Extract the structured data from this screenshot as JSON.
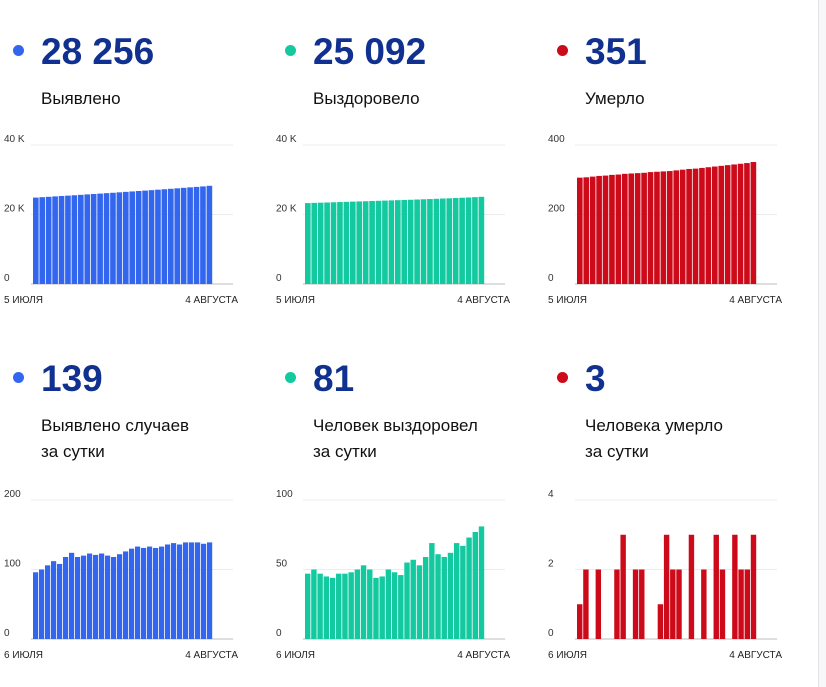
{
  "colors": {
    "blue": "#3366ee",
    "teal": "#12c9a0",
    "red": "#cc0a1a",
    "title": "#10318f"
  },
  "cards": [
    {
      "value": "28 256",
      "label1": "Выявлено",
      "label2": "",
      "chart_data": {
        "type": "bar",
        "color": "#3366ee",
        "y_ticks": [
          "0",
          "20 K",
          "40 K"
        ],
        "ylim": [
          0,
          40000
        ],
        "x_labels": [
          "5 ИЮЛЯ",
          "4 АВГУСТА"
        ],
        "values": [
          24860,
          24980,
          25090,
          25210,
          25320,
          25430,
          25540,
          25660,
          25780,
          25900,
          26020,
          26140,
          26250,
          26380,
          26510,
          26640,
          26760,
          26880,
          27010,
          27140,
          27270,
          27400,
          27530,
          27670,
          27810,
          27940,
          28080,
          28256
        ]
      }
    },
    {
      "value": "25 092",
      "label1": "Выздоровело",
      "label2": "",
      "chart_data": {
        "type": "bar",
        "color": "#12c9a0",
        "y_ticks": [
          "0",
          "20 K",
          "40 K"
        ],
        "ylim": [
          0,
          40000
        ],
        "x_labels": [
          "5 ИЮЛЯ",
          "4 АВГУСТА"
        ],
        "values": [
          23280,
          23340,
          23400,
          23460,
          23520,
          23580,
          23640,
          23700,
          23760,
          23820,
          23880,
          23940,
          24000,
          24060,
          24120,
          24180,
          24240,
          24310,
          24380,
          24450,
          24520,
          24590,
          24660,
          24740,
          24820,
          24900,
          24990,
          25092
        ]
      }
    },
    {
      "value": "351",
      "label1": "Умерло",
      "label2": "",
      "chart_data": {
        "type": "bar",
        "color": "#cc0a1a",
        "y_ticks": [
          "0",
          "200",
          "400"
        ],
        "ylim": [
          0,
          400
        ],
        "x_labels": [
          "5 ИЮЛЯ",
          "4 АВГУСТА"
        ],
        "values": [
          306,
          307,
          309,
          311,
          312,
          314,
          315,
          317,
          318,
          319,
          320,
          322,
          323,
          324,
          325,
          327,
          329,
          331,
          332,
          334,
          336,
          338,
          340,
          342,
          344,
          346,
          348,
          351
        ]
      }
    },
    {
      "value": "139",
      "label1": "Выявлено случаев",
      "label2": "за сутки",
      "chart_data": {
        "type": "bar",
        "color": "#3366ee",
        "y_ticks": [
          "0",
          "100",
          "200"
        ],
        "ylim": [
          0,
          200
        ],
        "x_labels": [
          "6 ИЮЛЯ",
          "4 АВГУСТА"
        ],
        "values": [
          96,
          100,
          106,
          112,
          108,
          118,
          124,
          118,
          120,
          123,
          121,
          123,
          120,
          118,
          122,
          126,
          130,
          133,
          131,
          133,
          131,
          133,
          136,
          138,
          136,
          139,
          139,
          139,
          137,
          139
        ]
      }
    },
    {
      "value": "81",
      "label1": "Человек выздоровел",
      "label2": "за сутки",
      "chart_data": {
        "type": "bar",
        "color": "#12c9a0",
        "y_ticks": [
          "0",
          "50",
          "100"
        ],
        "ylim": [
          0,
          100
        ],
        "x_labels": [
          "6 ИЮЛЯ",
          "4 АВГУСТА"
        ],
        "values": [
          47,
          50,
          47,
          45,
          44,
          47,
          47,
          48,
          50,
          53,
          50,
          44,
          45,
          50,
          48,
          46,
          55,
          57,
          53,
          59,
          69,
          61,
          59,
          62,
          69,
          67,
          73,
          77,
          81
        ]
      }
    },
    {
      "value": "3",
      "label1": "Человека умерло",
      "label2": "за сутки",
      "chart_data": {
        "type": "bar",
        "color": "#cc0a1a",
        "y_ticks": [
          "0",
          "2",
          "4"
        ],
        "ylim": [
          0,
          4
        ],
        "x_labels": [
          "6 ИЮЛЯ",
          "4 АВГУСТА"
        ],
        "values": [
          1,
          2,
          0,
          2,
          0,
          0,
          2,
          3,
          0,
          2,
          2,
          0,
          0,
          1,
          3,
          2,
          2,
          0,
          3,
          0,
          2,
          0,
          3,
          2,
          0,
          3,
          2,
          2,
          3
        ]
      }
    }
  ]
}
